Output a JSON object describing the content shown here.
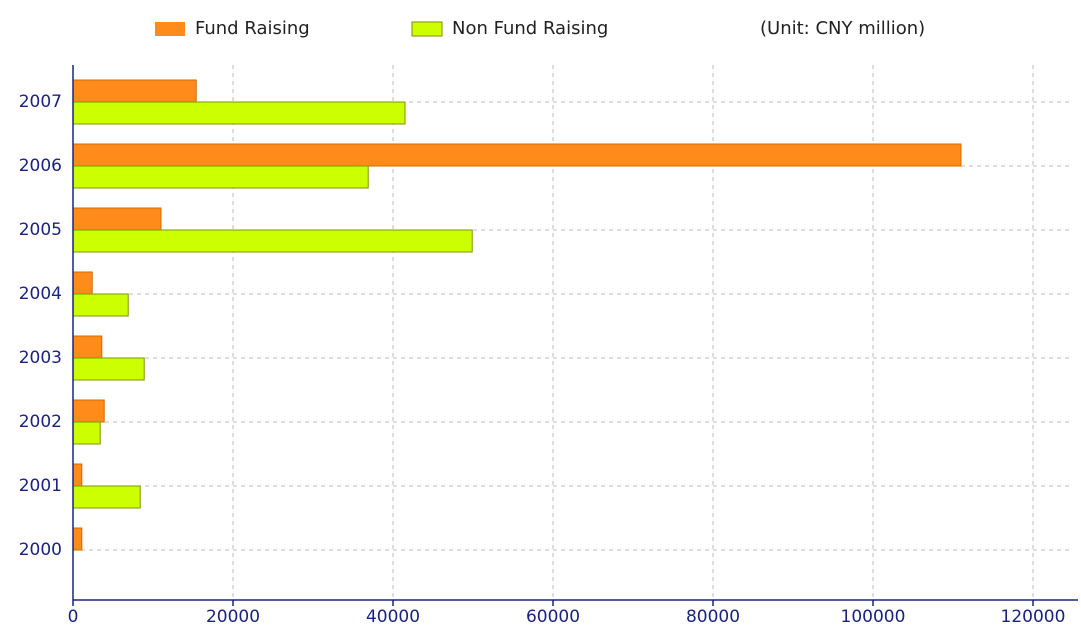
{
  "chart_data": {
    "type": "hbar",
    "subtitle": "(Unit: CNY million)",
    "categories": [
      "2000",
      "2001",
      "2002",
      "2003",
      "2004",
      "2005",
      "2006",
      "2007"
    ],
    "series": [
      {
        "name": "Fund Raising",
        "color": "#ff8c1a",
        "values": [
          1100,
          1100,
          3900,
          3600,
          2400,
          11000,
          111000,
          15400
        ]
      },
      {
        "name": "Non Fund Raising",
        "color": "#ccff00",
        "values": [
          0,
          8400,
          3400,
          8900,
          6900,
          49900,
          36900,
          41500
        ]
      }
    ],
    "xlim": [
      0,
      125000
    ],
    "xticks": [
      0,
      20000,
      40000,
      60000,
      80000,
      100000,
      120000
    ],
    "grid": true
  }
}
